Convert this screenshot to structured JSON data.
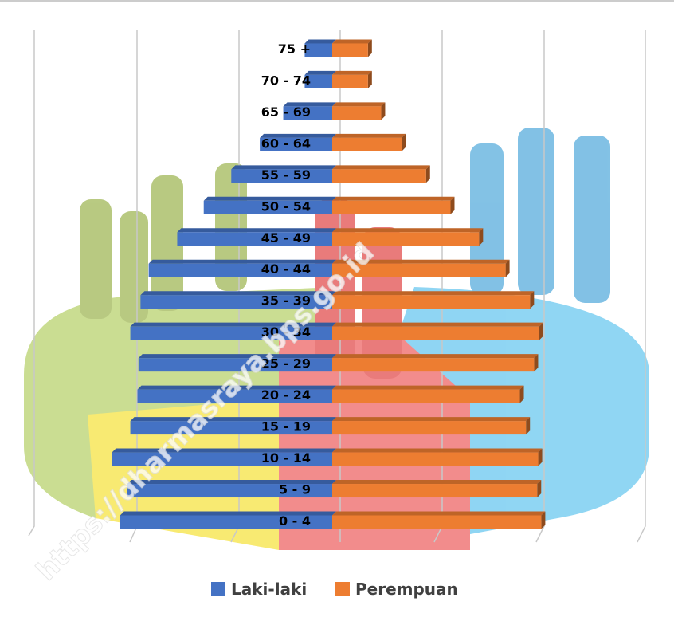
{
  "chart_data": {
    "type": "pyramid",
    "categories": [
      "0 - 4",
      "5 - 9",
      "10 - 14",
      "15 - 19",
      "20 - 24",
      "25 - 29",
      "30 - 34",
      "35 - 39",
      "40 - 44",
      "45 - 49",
      "50 - 54",
      "55 - 59",
      "60 - 64",
      "65 - 69",
      "70 - 74",
      "75 +"
    ],
    "series": [
      {
        "name": "Laki-laki",
        "color": "#4472c4",
        "values": [
          2.08,
          2.01,
          2.16,
          1.98,
          1.91,
          1.9,
          1.98,
          1.88,
          1.8,
          1.52,
          1.26,
          0.99,
          0.71,
          0.48,
          0.27,
          0.27
        ]
      },
      {
        "name": "Perempuan",
        "color": "#ed7d31",
        "values": [
          2.05,
          2.01,
          2.02,
          1.9,
          1.84,
          1.98,
          2.03,
          1.94,
          1.7,
          1.44,
          1.16,
          0.92,
          0.68,
          0.48,
          0.35,
          0.35
        ]
      }
    ],
    "watermark": "https://dharmasraya.bps.go.id"
  }
}
